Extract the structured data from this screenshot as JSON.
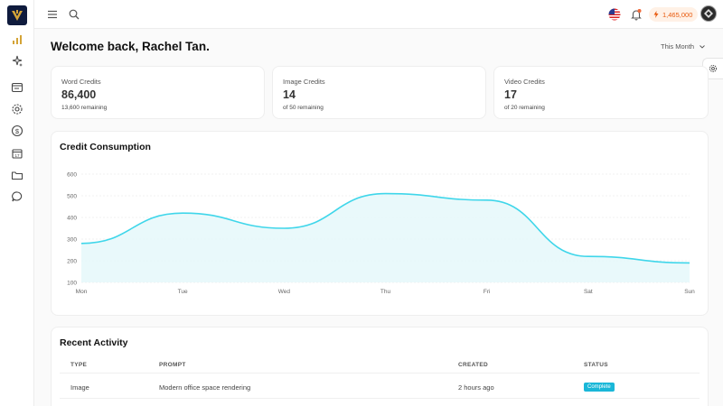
{
  "header": {
    "credits_balance": "1,465,000",
    "flag_icon": "us-flag-icon",
    "notification_icon": "bell-icon"
  },
  "main": {
    "welcome": "Welcome back, Rachel Tan.",
    "period_selector": "This Month"
  },
  "stats": [
    {
      "label": "Word Credits",
      "value": "86,400",
      "sub": "13,600 remaining"
    },
    {
      "label": "Image Credits",
      "value": "14",
      "sub": "of 50 remaining"
    },
    {
      "label": "Video Credits",
      "value": "17",
      "sub": "of 20 remaining"
    }
  ],
  "chart_section": {
    "title": "Credit Consumption"
  },
  "chart_data": {
    "type": "area",
    "categories": [
      "Mon",
      "Tue",
      "Wed",
      "Thu",
      "Fri",
      "Sat",
      "Sun"
    ],
    "yticks": [
      100,
      200,
      300,
      400,
      500,
      600
    ],
    "ylim": [
      100,
      600
    ],
    "series": [
      {
        "values": [
          280,
          420,
          350,
          510,
          480,
          220,
          190
        ]
      }
    ],
    "line_color": "#3fd6ea",
    "fill_color": "#e7f8fb",
    "grid": true
  },
  "activity": {
    "title": "Recent Activity",
    "headers": [
      "TYPE",
      "PROMPT",
      "CREATED",
      "STATUS"
    ],
    "rows": [
      {
        "type": "Image",
        "prompt": "Modern office space rendering",
        "created": "2 hours ago",
        "status": "Complete"
      }
    ],
    "status_color": "#1ab7d8"
  },
  "sidebar": {
    "icons": [
      "analytics-icon",
      "sparkle-icon",
      "browser-icon",
      "settings-icon",
      "dollar-icon",
      "calendar-icon",
      "folder-icon",
      "chat-icon"
    ]
  }
}
